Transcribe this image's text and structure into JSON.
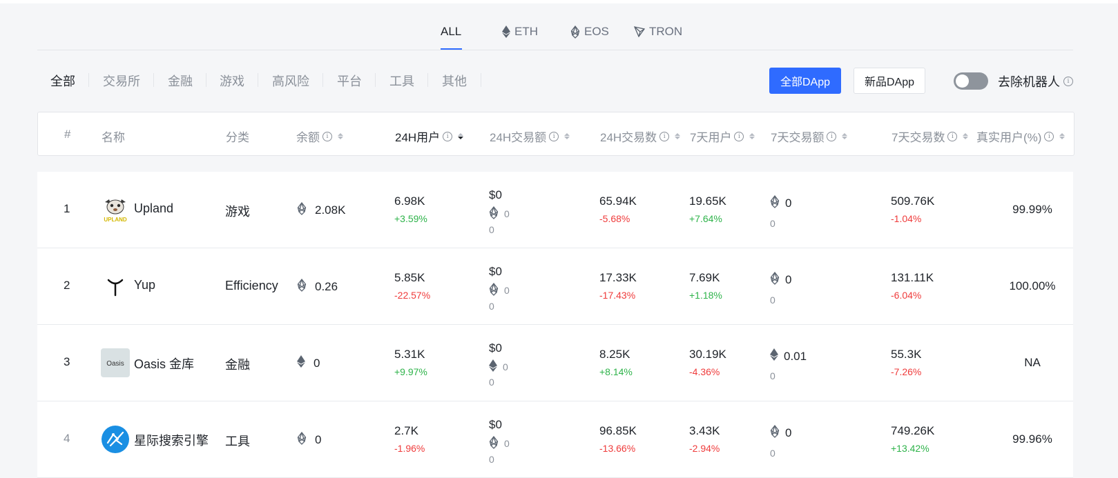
{
  "chain_tabs": [
    {
      "label": "ALL",
      "active": true
    },
    {
      "label": "ETH",
      "icon": "eth-icon"
    },
    {
      "label": "EOS",
      "icon": "eos-icon"
    },
    {
      "label": "TRON",
      "icon": "tron-icon"
    }
  ],
  "categories": [
    "全部",
    "交易所",
    "金融",
    "游戏",
    "高风险",
    "平台",
    "工具",
    "其他"
  ],
  "buttons": {
    "all_dapp": "全部DApp",
    "new_dapp": "新品DApp"
  },
  "toggle": {
    "label": "去除机器人",
    "on": false
  },
  "columns": {
    "rank": "#",
    "name": "名称",
    "category": "分类",
    "balance": "余额",
    "users_24h": "24H用户",
    "volume_24h": "24H交易额",
    "tx_24h": "24H交易数",
    "users_7d": "7天用户",
    "volume_7d": "7天交易额",
    "tx_7d": "7天交易数",
    "real_users": "真实用户(%)"
  },
  "colors": {
    "accent": "#2f6bff",
    "positive": "#2eb34a",
    "negative": "#ef3b3b"
  },
  "rows": [
    {
      "rank": "1",
      "name": "Upland",
      "category": "游戏",
      "balance_icon": "eos-icon",
      "balance": "2.08K",
      "users_24h": "6.98K",
      "users_24h_chg": "+3.59%",
      "volume_24h_usd": "$0",
      "volume_24h_icon": "eos-icon",
      "volume_24h_amt": "0",
      "volume_24h_sub": "0",
      "tx_24h": "65.94K",
      "tx_24h_chg": "-5.68%",
      "users_7d": "19.65K",
      "users_7d_chg": "+7.64%",
      "volume_7d_icon": "eos-icon",
      "volume_7d": "0",
      "volume_7d_sub": "0",
      "tx_7d": "509.76K",
      "tx_7d_chg": "-1.04%",
      "real_users": "99.99%",
      "logo_text": "UPLAND"
    },
    {
      "rank": "2",
      "name": "Yup",
      "category": "Efficiency",
      "balance_icon": "eos-icon",
      "balance": "0.26",
      "users_24h": "5.85K",
      "users_24h_chg": "-22.57%",
      "volume_24h_usd": "$0",
      "volume_24h_icon": "eos-icon",
      "volume_24h_amt": "0",
      "volume_24h_sub": "0",
      "tx_24h": "17.33K",
      "tx_24h_chg": "-17.43%",
      "users_7d": "7.69K",
      "users_7d_chg": "+1.18%",
      "volume_7d_icon": "eos-icon",
      "volume_7d": "0",
      "volume_7d_sub": "0",
      "tx_7d": "131.11K",
      "tx_7d_chg": "-6.04%",
      "real_users": "100.00%",
      "logo_text": "Y"
    },
    {
      "rank": "3",
      "name": "Oasis 金库",
      "category": "金融",
      "balance_icon": "eth-icon",
      "balance": "0",
      "users_24h": "5.31K",
      "users_24h_chg": "+9.97%",
      "volume_24h_usd": "$0",
      "volume_24h_icon": "eth-icon",
      "volume_24h_amt": "0",
      "volume_24h_sub": "0",
      "tx_24h": "8.25K",
      "tx_24h_chg": "+8.14%",
      "users_7d": "30.19K",
      "users_7d_chg": "-4.36%",
      "volume_7d_icon": "eth-icon",
      "volume_7d": "0.01",
      "volume_7d_sub": "0",
      "tx_7d": "55.3K",
      "tx_7d_chg": "-7.26%",
      "real_users": "NA",
      "logo_text": "Oasis"
    },
    {
      "rank": "4",
      "name": "星际搜索引擎",
      "category": "工具",
      "balance_icon": "eos-icon",
      "balance": "0",
      "users_24h": "2.7K",
      "users_24h_chg": "-1.96%",
      "volume_24h_usd": "$0",
      "volume_24h_icon": "eos-icon",
      "volume_24h_amt": "0",
      "volume_24h_sub": "0",
      "tx_24h": "96.85K",
      "tx_24h_chg": "-13.66%",
      "users_7d": "3.43K",
      "users_7d_chg": "-2.94%",
      "volume_7d_icon": "eos-icon",
      "volume_7d": "0",
      "volume_7d_sub": "0",
      "tx_7d": "749.26K",
      "tx_7d_chg": "+13.42%",
      "real_users": "99.96%",
      "logo_text": ""
    }
  ]
}
